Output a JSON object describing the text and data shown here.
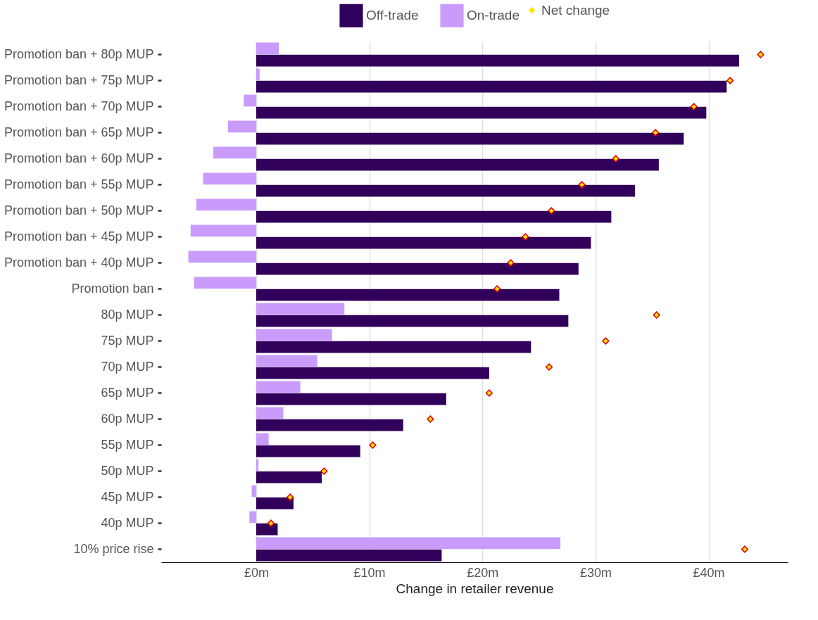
{
  "chart_data": {
    "type": "bar",
    "orientation": "horizontal",
    "xlabel": "Change in retailer revenue",
    "categories": [
      "Promotion ban + 80p MUP",
      "Promotion ban + 75p MUP",
      "Promotion ban + 70p MUP",
      "Promotion ban + 65p MUP",
      "Promotion ban + 60p MUP",
      "Promotion ban + 55p MUP",
      "Promotion ban + 50p MUP",
      "Promotion ban + 45p MUP",
      "Promotion ban + 40p MUP",
      "Promotion ban",
      "80p MUP",
      "75p MUP",
      "70p MUP",
      "65p MUP",
      "60p MUP",
      "55p MUP",
      "50p MUP",
      "45p MUP",
      "40p MUP",
      "10% price rise"
    ],
    "series": [
      {
        "name": "Off-trade",
        "color": "#31005a",
        "values": [
          42.7,
          41.6,
          39.8,
          37.8,
          35.6,
          33.5,
          31.4,
          29.6,
          28.5,
          26.8,
          27.6,
          24.3,
          20.6,
          16.8,
          13.0,
          9.2,
          5.8,
          3.3,
          1.9,
          16.4
        ]
      },
      {
        "name": "On-trade",
        "color": "#c99cfc",
        "values": [
          2.0,
          0.3,
          -1.1,
          -2.5,
          -3.8,
          -4.7,
          -5.3,
          -5.8,
          -6.0,
          -5.5,
          7.8,
          6.7,
          5.4,
          3.9,
          2.4,
          1.1,
          0.2,
          -0.4,
          -0.6,
          26.9
        ]
      },
      {
        "name": "Net change",
        "type": "scatter",
        "marker": "diamond",
        "color": "#ffe600",
        "values": [
          44.6,
          41.9,
          38.7,
          35.3,
          31.8,
          28.8,
          26.1,
          23.8,
          22.5,
          21.3,
          35.4,
          30.9,
          25.9,
          20.6,
          15.4,
          10.3,
          6.0,
          3.0,
          1.3,
          43.2
        ]
      }
    ],
    "xlim": [
      -8.4,
      47
    ],
    "xticks": [
      {
        "value": 0,
        "label": "£0m"
      },
      {
        "value": 10,
        "label": "£10m"
      },
      {
        "value": 20,
        "label": "£20m"
      },
      {
        "value": 30,
        "label": "£30m"
      },
      {
        "value": 40,
        "label": "£40m"
      }
    ],
    "grid": "x",
    "legend": "top"
  }
}
